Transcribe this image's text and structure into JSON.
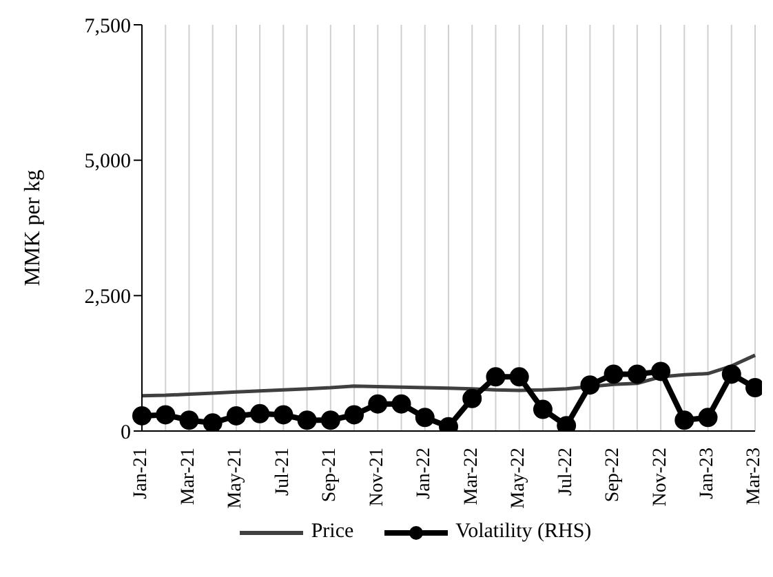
{
  "chart_data": {
    "type": "line",
    "ylabel": "MMK per kg",
    "categories": [
      "Jan-21",
      null,
      "Mar-21",
      null,
      "May-21",
      null,
      "Jul-21",
      null,
      "Sep-21",
      null,
      "Nov-21",
      null,
      "Jan-22",
      null,
      "Mar-22",
      null,
      "May-22",
      null,
      "Jul-22",
      null,
      "Sep-22",
      null,
      "Nov-22",
      null,
      "Jan-23",
      null,
      "Mar-23"
    ],
    "series": [
      {
        "name": "Price",
        "color": "#404040",
        "marker": "none",
        "values": [
          650,
          660,
          680,
          700,
          720,
          740,
          760,
          780,
          800,
          830,
          820,
          810,
          800,
          790,
          780,
          760,
          750,
          760,
          780,
          820,
          860,
          880,
          1000,
          1040,
          1060,
          1200,
          1400
        ]
      },
      {
        "name": "Volatility (RHS)",
        "color": "#000000",
        "marker": "circle",
        "values": [
          280,
          300,
          200,
          150,
          280,
          320,
          300,
          200,
          200,
          300,
          500,
          500,
          250,
          80,
          600,
          1000,
          1000,
          400,
          100,
          850,
          1050,
          1050,
          1100,
          200,
          250,
          1050,
          800
        ]
      }
    ],
    "ylim": [
      0,
      7500
    ],
    "yticks": [
      0,
      {
        "value": 2500,
        "label": "2,500"
      },
      {
        "value": 5000,
        "label": "5,000"
      },
      {
        "value": 7500,
        "label": "7,500"
      }
    ],
    "grid": "x",
    "legend": "bottom"
  }
}
